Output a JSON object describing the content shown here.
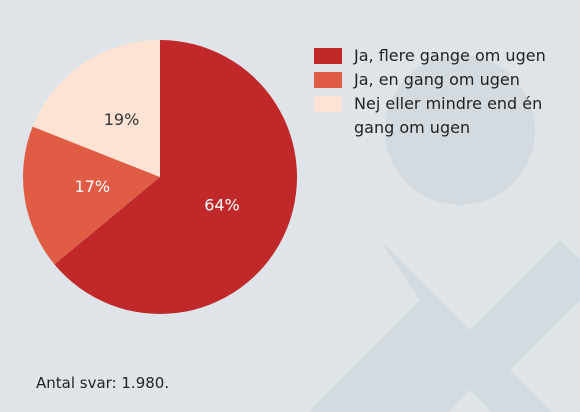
{
  "chart_data": {
    "type": "pie",
    "categories": [
      "Ja, flere gange om ugen",
      "Ja, en gang om ugen",
      "Nej eller mindre end én gang om ugen"
    ],
    "values": [
      64,
      17,
      19
    ],
    "value_labels": [
      "64%",
      "17%",
      "19%"
    ],
    "colors": [
      "#c0282a",
      "#e05c45",
      "#fde3d4"
    ],
    "label_colors": [
      "#ffffff",
      "#ffffff",
      "#333333"
    ],
    "note": "Antal svar: 1.980."
  }
}
